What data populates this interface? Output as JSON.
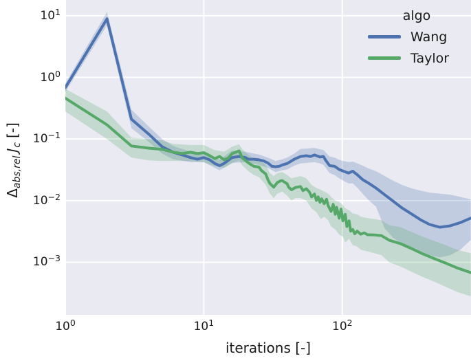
{
  "chart_data": {
    "type": "line",
    "title": "",
    "xlabel": "iterations [-]",
    "ylabel": "Δ_abs,rel J_c [-]",
    "ylabel_parts": {
      "delta": "Δ",
      "sub": "abs,rel",
      "symbol": "J",
      "symbol_sub": "c",
      "units": "[-]"
    },
    "x_scale": "log",
    "y_scale": "log",
    "x_range": [
      1,
      850
    ],
    "y_range": [
      0.00014,
      18
    ],
    "grid": true,
    "x_gridlines": [
      1,
      10,
      100
    ],
    "y_gridlines": [
      10,
      1,
      0.1,
      0.01,
      0.001
    ],
    "x_ticks": [
      {
        "value": 1,
        "base": "10",
        "exp": "0"
      },
      {
        "value": 10,
        "base": "10",
        "exp": "1"
      },
      {
        "value": 100,
        "base": "10",
        "exp": "2"
      }
    ],
    "y_ticks": [
      {
        "value": 10,
        "base": "10",
        "exp": "1"
      },
      {
        "value": 1,
        "base": "10",
        "exp": "0"
      },
      {
        "value": 0.1,
        "base": "10",
        "exp": "−1"
      },
      {
        "value": 0.01,
        "base": "10",
        "exp": "−2"
      },
      {
        "value": 0.001,
        "base": "10",
        "exp": "−3"
      }
    ],
    "legend": {
      "title": "algo",
      "position": "upper right"
    },
    "colors": {
      "plot_bg": "#EAEAF2",
      "grid": "#FFFFFF",
      "text": "#1a1a1a",
      "band_alpha": 0.25
    },
    "series": [
      {
        "name": "Wang",
        "color": "#4C72B0",
        "points": [
          [
            1,
            0.68
          ],
          [
            2,
            8.9
          ],
          [
            3,
            0.21
          ],
          [
            4,
            0.12
          ],
          [
            5,
            0.075
          ],
          [
            6,
            0.061
          ],
          [
            7,
            0.055
          ],
          [
            8,
            0.05
          ],
          [
            9,
            0.047
          ],
          [
            10,
            0.05
          ],
          [
            11,
            0.046
          ],
          [
            12,
            0.04
          ],
          [
            13,
            0.037
          ],
          [
            14,
            0.04
          ],
          [
            15,
            0.045
          ],
          [
            16,
            0.05
          ],
          [
            18,
            0.052
          ],
          [
            20,
            0.05
          ],
          [
            21,
            0.047
          ],
          [
            23,
            0.047
          ],
          [
            25,
            0.046
          ],
          [
            27,
            0.044
          ],
          [
            29,
            0.041
          ],
          [
            31,
            0.036
          ],
          [
            33,
            0.0355
          ],
          [
            35,
            0.036
          ],
          [
            37,
            0.038
          ],
          [
            40,
            0.04
          ],
          [
            45,
            0.047
          ],
          [
            50,
            0.052
          ],
          [
            55,
            0.0535
          ],
          [
            59,
            0.052
          ],
          [
            63,
            0.055
          ],
          [
            69,
            0.051
          ],
          [
            73,
            0.052
          ],
          [
            76,
            0.045
          ],
          [
            81,
            0.037
          ],
          [
            88,
            0.036
          ],
          [
            95,
            0.032
          ],
          [
            102,
            0.03
          ],
          [
            111,
            0.028
          ],
          [
            119,
            0.03
          ],
          [
            129,
            0.026
          ],
          [
            140,
            0.022
          ],
          [
            156,
            0.019
          ],
          [
            175,
            0.016
          ],
          [
            203,
            0.0124
          ],
          [
            233,
            0.0098
          ],
          [
            270,
            0.0076
          ],
          [
            312,
            0.0062
          ],
          [
            367,
            0.0049
          ],
          [
            427,
            0.0041
          ],
          [
            506,
            0.0037
          ],
          [
            600,
            0.0039
          ],
          [
            712,
            0.0044
          ],
          [
            846,
            0.0052
          ]
        ],
        "band": [
          [
            1,
            0.58,
            0.8
          ],
          [
            2,
            7.0,
            11.5
          ],
          [
            3,
            0.15,
            0.3
          ],
          [
            4,
            0.09,
            0.16
          ],
          [
            5,
            0.058,
            0.1
          ],
          [
            6,
            0.047,
            0.077
          ],
          [
            8,
            0.042,
            0.062
          ],
          [
            10,
            0.042,
            0.06
          ],
          [
            13,
            0.031,
            0.046
          ],
          [
            16,
            0.041,
            0.065
          ],
          [
            20,
            0.042,
            0.062
          ],
          [
            25,
            0.038,
            0.056
          ],
          [
            29,
            0.034,
            0.05
          ],
          [
            33,
            0.029,
            0.044
          ],
          [
            37,
            0.031,
            0.047
          ],
          [
            40,
            0.032,
            0.05
          ],
          [
            45,
            0.037,
            0.058
          ],
          [
            50,
            0.04,
            0.069
          ],
          [
            55,
            0.041,
            0.07
          ],
          [
            63,
            0.042,
            0.072
          ],
          [
            69,
            0.04,
            0.068
          ],
          [
            73,
            0.038,
            0.066
          ],
          [
            81,
            0.028,
            0.052
          ],
          [
            88,
            0.026,
            0.05
          ],
          [
            95,
            0.023,
            0.046
          ],
          [
            102,
            0.021,
            0.044
          ],
          [
            111,
            0.019,
            0.042
          ],
          [
            119,
            0.019,
            0.043
          ],
          [
            129,
            0.016,
            0.04
          ],
          [
            140,
            0.013,
            0.037
          ],
          [
            156,
            0.01,
            0.033
          ],
          [
            175,
            0.008,
            0.03
          ],
          [
            203,
            0.0035,
            0.025
          ],
          [
            233,
            0.0025,
            0.021
          ],
          [
            270,
            0.002,
            0.018
          ],
          [
            312,
            0.0017,
            0.016
          ],
          [
            367,
            0.0014,
            0.0145
          ],
          [
            427,
            0.0013,
            0.0135
          ],
          [
            506,
            0.0012,
            0.013
          ],
          [
            600,
            0.0013,
            0.0125
          ],
          [
            712,
            0.0016,
            0.0115
          ],
          [
            846,
            0.0023,
            0.0105
          ]
        ]
      },
      {
        "name": "Taylor",
        "color": "#55A868",
        "points": [
          [
            1,
            0.46
          ],
          [
            2,
            0.17
          ],
          [
            3,
            0.077
          ],
          [
            4,
            0.071
          ],
          [
            5,
            0.068
          ],
          [
            6,
            0.061
          ],
          [
            7,
            0.058
          ],
          [
            8,
            0.061
          ],
          [
            9,
            0.058
          ],
          [
            10,
            0.06
          ],
          [
            11,
            0.054
          ],
          [
            12,
            0.048
          ],
          [
            13,
            0.052
          ],
          [
            14,
            0.046
          ],
          [
            15,
            0.049
          ],
          [
            16,
            0.058
          ],
          [
            18,
            0.064
          ],
          [
            19,
            0.049
          ],
          [
            21,
            0.041
          ],
          [
            22,
            0.038
          ],
          [
            23,
            0.036
          ],
          [
            25,
            0.035
          ],
          [
            26,
            0.031
          ],
          [
            28,
            0.027
          ],
          [
            29,
            0.022
          ],
          [
            30,
            0.019
          ],
          [
            32,
            0.0165
          ],
          [
            34,
            0.0197
          ],
          [
            36,
            0.021
          ],
          [
            37,
            0.021
          ],
          [
            40,
            0.0187
          ],
          [
            41,
            0.0165
          ],
          [
            43,
            0.015
          ],
          [
            46,
            0.0164
          ],
          [
            50,
            0.0169
          ],
          [
            52,
            0.0145
          ],
          [
            55,
            0.0156
          ],
          [
            58,
            0.0137
          ],
          [
            60,
            0.0115
          ],
          [
            63,
            0.0128
          ],
          [
            65,
            0.0101
          ],
          [
            67,
            0.0115
          ],
          [
            69,
            0.0094
          ],
          [
            71,
            0.0107
          ],
          [
            74,
            0.0089
          ],
          [
            77,
            0.0105
          ],
          [
            79,
            0.0083
          ],
          [
            83,
            0.0067
          ],
          [
            86,
            0.0087
          ],
          [
            89,
            0.006
          ],
          [
            91,
            0.0078
          ],
          [
            95,
            0.0052
          ],
          [
            98,
            0.0073
          ],
          [
            101,
            0.0047
          ],
          [
            105,
            0.006
          ],
          [
            108,
            0.0038
          ],
          [
            112,
            0.0047
          ],
          [
            115,
            0.0032
          ],
          [
            119,
            0.0034
          ],
          [
            123,
            0.0029
          ],
          [
            128,
            0.0032
          ],
          [
            136,
            0.00285
          ],
          [
            144,
            0.003
          ],
          [
            152,
            0.0028
          ],
          [
            171,
            0.00277
          ],
          [
            192,
            0.0027
          ],
          [
            218,
            0.00228
          ],
          [
            264,
            0.002
          ],
          [
            316,
            0.00167
          ],
          [
            380,
            0.00137
          ],
          [
            465,
            0.00114
          ],
          [
            557,
            0.00097
          ],
          [
            675,
            0.00081
          ],
          [
            846,
            0.00068
          ]
        ],
        "band": [
          [
            1,
            0.28,
            0.65
          ],
          [
            2,
            0.1,
            0.28
          ],
          [
            3,
            0.05,
            0.105
          ],
          [
            4,
            0.045,
            0.1
          ],
          [
            5,
            0.044,
            0.095
          ],
          [
            6,
            0.044,
            0.083
          ],
          [
            8,
            0.044,
            0.08
          ],
          [
            10,
            0.042,
            0.08
          ],
          [
            12,
            0.036,
            0.066
          ],
          [
            14,
            0.034,
            0.062
          ],
          [
            16,
            0.04,
            0.075
          ],
          [
            18,
            0.045,
            0.082
          ],
          [
            19,
            0.037,
            0.068
          ],
          [
            21,
            0.03,
            0.055
          ],
          [
            23,
            0.026,
            0.048
          ],
          [
            25,
            0.024,
            0.046
          ],
          [
            28,
            0.018,
            0.038
          ],
          [
            30,
            0.013,
            0.028
          ],
          [
            32,
            0.011,
            0.025
          ],
          [
            34,
            0.013,
            0.028
          ],
          [
            37,
            0.014,
            0.029
          ],
          [
            40,
            0.012,
            0.026
          ],
          [
            43,
            0.01,
            0.023
          ],
          [
            46,
            0.011,
            0.024
          ],
          [
            50,
            0.011,
            0.025
          ],
          [
            55,
            0.01,
            0.023
          ],
          [
            60,
            0.0075,
            0.018
          ],
          [
            65,
            0.0065,
            0.016
          ],
          [
            70,
            0.005,
            0.015
          ],
          [
            74,
            0.0055,
            0.014
          ],
          [
            79,
            0.0048,
            0.013
          ],
          [
            83,
            0.0038,
            0.0115
          ],
          [
            89,
            0.0034,
            0.01
          ],
          [
            95,
            0.0028,
            0.0095
          ],
          [
            101,
            0.0026,
            0.0085
          ],
          [
            105,
            0.0021,
            0.0075
          ],
          [
            112,
            0.0024,
            0.007
          ],
          [
            119,
            0.0019,
            0.0062
          ],
          [
            128,
            0.0018,
            0.006
          ],
          [
            136,
            0.0016,
            0.0055
          ],
          [
            152,
            0.0015,
            0.0052
          ],
          [
            171,
            0.0014,
            0.005
          ],
          [
            192,
            0.0013,
            0.0048
          ],
          [
            218,
            0.001,
            0.004
          ],
          [
            264,
            0.00085,
            0.0037
          ],
          [
            316,
            0.0007,
            0.0031
          ],
          [
            380,
            0.00058,
            0.0026
          ],
          [
            465,
            0.00048,
            0.0022
          ],
          [
            557,
            0.0004,
            0.0019
          ],
          [
            675,
            0.00033,
            0.0016
          ],
          [
            846,
            0.00028,
            0.0014
          ]
        ]
      }
    ]
  }
}
